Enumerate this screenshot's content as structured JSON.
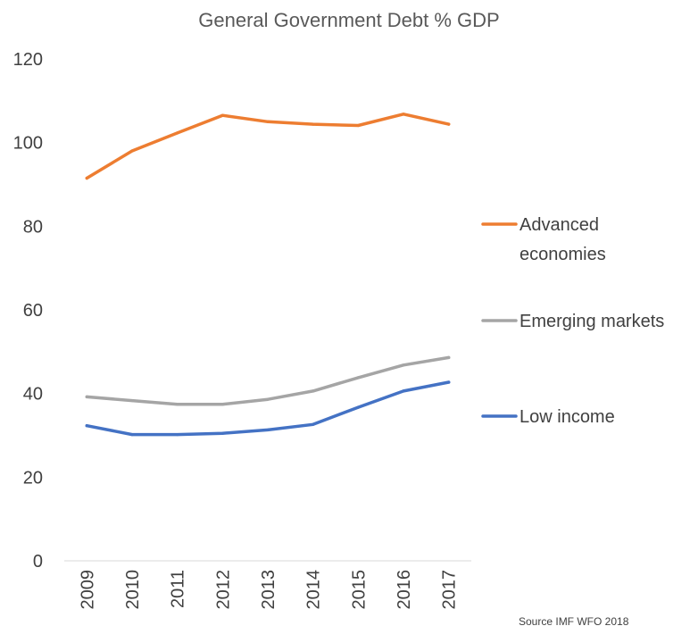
{
  "chart_data": {
    "type": "line",
    "title": "General Government Debt % GDP",
    "xlabel": "",
    "ylabel": "",
    "categories": [
      "2009",
      "2010",
      "2011",
      "2012",
      "2013",
      "2014",
      "2015",
      "2016",
      "2017"
    ],
    "ylim": [
      0,
      120
    ],
    "yticks": [
      0,
      20,
      40,
      60,
      80,
      100,
      120
    ],
    "grid": false,
    "legend_position": "right",
    "series": [
      {
        "name": "Advanced economies",
        "legend_lines": [
          "Advanced",
          "economies"
        ],
        "color": "#ED7D31",
        "values": [
          91.5,
          98.0,
          102.3,
          106.5,
          105.0,
          104.4,
          104.1,
          106.8,
          104.4
        ]
      },
      {
        "name": "Emerging markets",
        "legend_lines": [
          "Emerging markets"
        ],
        "color": "#A5A5A5",
        "values": [
          39.2,
          38.3,
          37.4,
          37.4,
          38.6,
          40.6,
          43.8,
          46.8,
          48.6
        ]
      },
      {
        "name": "Low income",
        "legend_lines": [
          "Low income"
        ],
        "color": "#4472C4",
        "values": [
          32.3,
          30.2,
          30.2,
          30.5,
          31.3,
          32.6,
          36.7,
          40.6,
          42.7
        ]
      }
    ],
    "annotations": [
      "Source IMF WFO 2018"
    ]
  }
}
